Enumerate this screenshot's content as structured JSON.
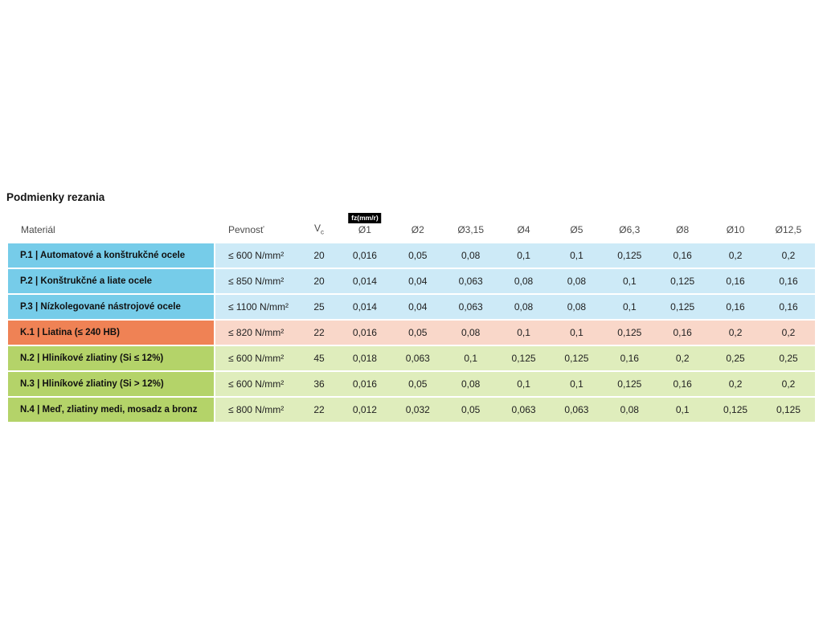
{
  "page": {
    "title": "Podmienky rezania"
  },
  "chart_data": {
    "type": "table",
    "title": "Podmienky rezania",
    "fz_badge": "fz(mm/r)",
    "headers": {
      "material": "Materiál",
      "strength": "Pevnosť",
      "vc": {
        "main": "V",
        "sub": "c"
      },
      "diameters": [
        "Ø1",
        "Ø2",
        "Ø3,15",
        "Ø4",
        "Ø5",
        "Ø6,3",
        "Ø8",
        "Ø10",
        "Ø12,5"
      ]
    },
    "colors": {
      "p_dark": "#76cce9",
      "p_light": "#cdeaf7",
      "k_dark": "#ef8255",
      "k_light": "#f9d7c9",
      "n_dark": "#b4d369",
      "n_light": "#dfedbc"
    },
    "rows": [
      {
        "group": "P",
        "material": "P.1 | Automatové a konštrukčné ocele",
        "strength": "≤ 600 N/mm²",
        "vc": "20",
        "values": [
          "0,016",
          "0,05",
          "0,08",
          "0,1",
          "0,1",
          "0,125",
          "0,16",
          "0,2",
          "0,2"
        ]
      },
      {
        "group": "P",
        "material": "P.2 | Konštrukčné a liate ocele",
        "strength": "≤ 850 N/mm²",
        "vc": "20",
        "values": [
          "0,014",
          "0,04",
          "0,063",
          "0,08",
          "0,08",
          "0,1",
          "0,125",
          "0,16",
          "0,16"
        ]
      },
      {
        "group": "P",
        "material": "P.3 | Nízkolegované nástrojové ocele",
        "strength": "≤ 1100 N/mm²",
        "vc": "25",
        "values": [
          "0,014",
          "0,04",
          "0,063",
          "0,08",
          "0,08",
          "0,1",
          "0,125",
          "0,16",
          "0,16"
        ]
      },
      {
        "group": "K",
        "material": "K.1 | Liatina (≤ 240 HB)",
        "strength": "≤ 820 N/mm²",
        "vc": "22",
        "values": [
          "0,016",
          "0,05",
          "0,08",
          "0,1",
          "0,1",
          "0,125",
          "0,16",
          "0,2",
          "0,2"
        ]
      },
      {
        "group": "N",
        "material": "N.2 | Hliníkové zliatiny (Si ≤ 12%)",
        "strength": "≤ 600 N/mm²",
        "vc": "45",
        "values": [
          "0,018",
          "0,063",
          "0,1",
          "0,125",
          "0,125",
          "0,16",
          "0,2",
          "0,25",
          "0,25"
        ]
      },
      {
        "group": "N",
        "material": "N.3 | Hliníkové zliatiny (Si > 12%)",
        "strength": "≤ 600 N/mm²",
        "vc": "36",
        "values": [
          "0,016",
          "0,05",
          "0,08",
          "0,1",
          "0,1",
          "0,125",
          "0,16",
          "0,2",
          "0,2"
        ]
      },
      {
        "group": "N",
        "material": "N.4 | Meď, zliatiny medi, mosadz a bronz",
        "strength": "≤ 800 N/mm²",
        "vc": "22",
        "values": [
          "0,012",
          "0,032",
          "0,05",
          "0,063",
          "0,063",
          "0,08",
          "0,1",
          "0,125",
          "0,125"
        ]
      }
    ]
  }
}
